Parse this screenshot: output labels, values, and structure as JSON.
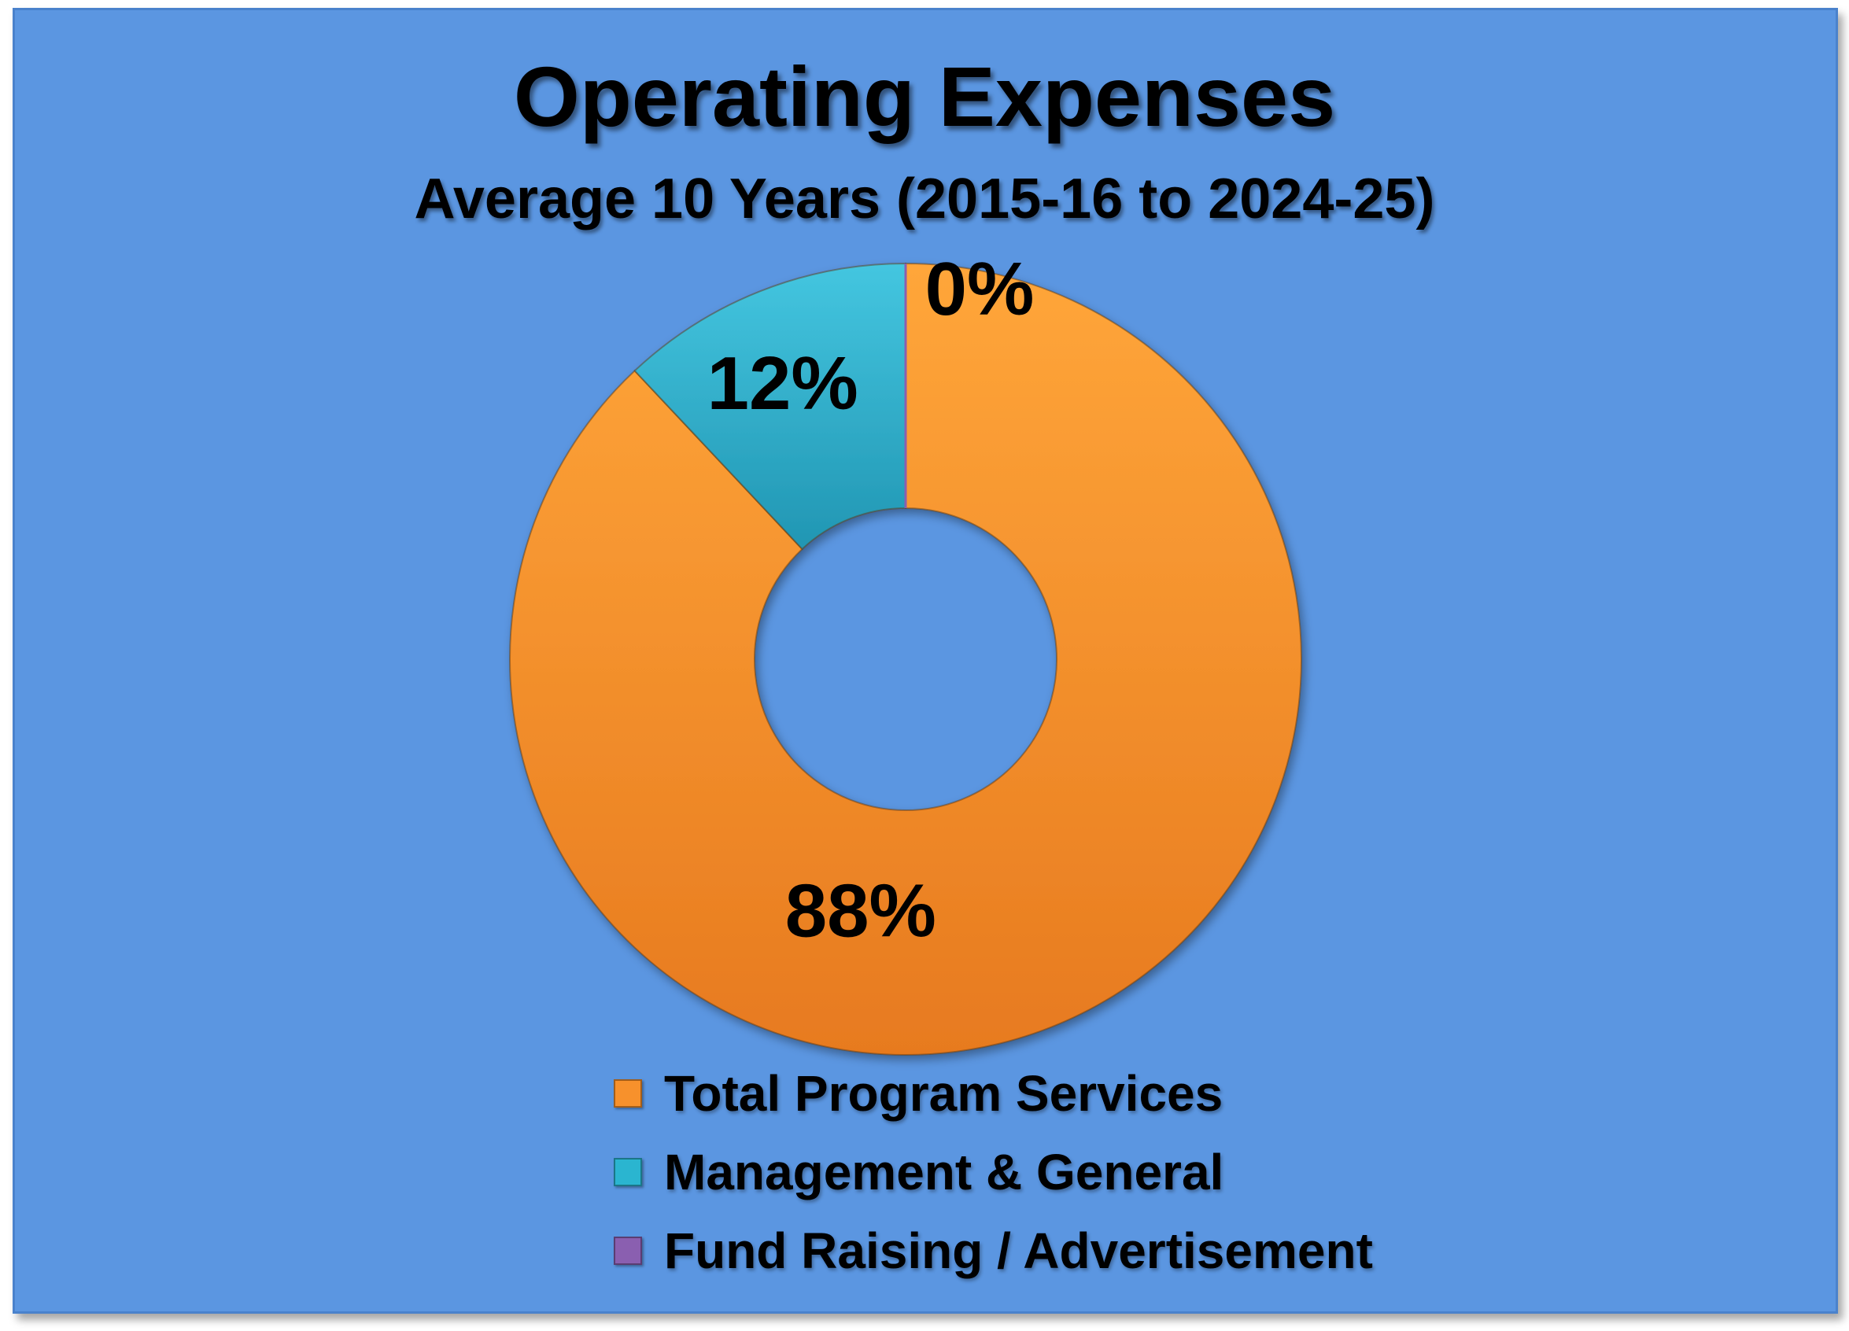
{
  "chart_data": {
    "type": "pie",
    "title": "Operating Expenses",
    "subtitle": "Average 10 Years (2015-16 to 2024-25)",
    "categories": [
      "Total Program Services",
      "Management & General",
      "Fund Raising / Advertisement"
    ],
    "values": [
      88,
      12,
      0
    ],
    "data_labels": [
      "88%",
      "12%",
      "0%"
    ],
    "colors": [
      "#f7912c",
      "#2ab5d0",
      "#8a5fb0"
    ],
    "legend_position": "bottom",
    "donut": true
  }
}
